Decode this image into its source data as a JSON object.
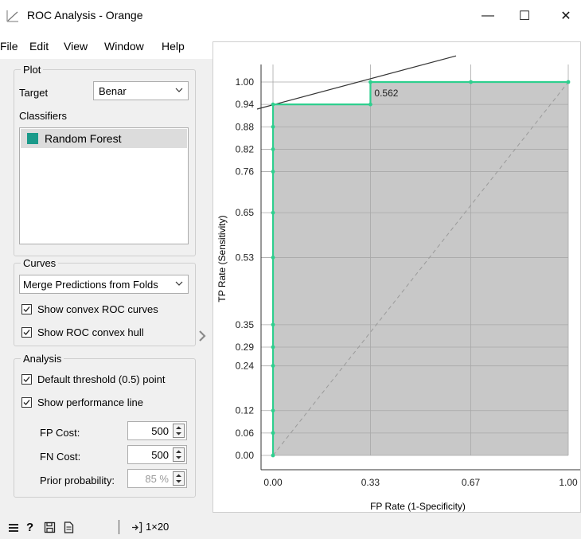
{
  "window": {
    "title": "ROC Analysis - Orange",
    "min_label": "—",
    "max_label": "☐",
    "close_label": "✕"
  },
  "menu": [
    "File",
    "Edit",
    "View",
    "Window",
    "Help"
  ],
  "plot_box": {
    "legend": "Plot",
    "target_label": "Target",
    "target_value": "Benar",
    "classifiers_label": "Classifiers",
    "classifiers": [
      {
        "name": "Random Forest",
        "color": "#1a9a8a"
      }
    ]
  },
  "curves_box": {
    "legend": "Curves",
    "mode": "Merge Predictions from Folds",
    "show_convex_roc": {
      "label": "Show convex ROC curves",
      "checked": true
    },
    "show_hull": {
      "label": "Show ROC convex hull",
      "checked": true
    }
  },
  "analysis_box": {
    "legend": "Analysis",
    "default_threshold": {
      "label": "Default threshold (0.5) point",
      "checked": true
    },
    "show_perf_line": {
      "label": "Show performance line",
      "checked": true
    },
    "fp_cost_label": "FP Cost:",
    "fp_cost": "500",
    "fn_cost_label": "FN Cost:",
    "fn_cost": "500",
    "prior_label": "Prior probability:",
    "prior": "85 %"
  },
  "status": {
    "output_count": "1×20"
  },
  "chart_data": {
    "type": "line",
    "xlabel": "FP Rate (1-Specificity)",
    "ylabel": "TP Rate (Sensitivity)",
    "xlim": [
      0,
      1
    ],
    "ylim": [
      0,
      1
    ],
    "x_ticks": [
      "0.00",
      "0.33",
      "0.67",
      "1.00"
    ],
    "y_ticks": [
      "0.00",
      "0.06",
      "0.12",
      "0.24",
      "0.29",
      "0.35",
      "0.53",
      "0.65",
      "0.76",
      "0.82",
      "0.88",
      "0.94",
      "1.00"
    ],
    "grid": true,
    "series": [
      {
        "name": "Random Forest",
        "color": "#2ecf8e",
        "x": [
          0,
          0,
          0,
          0,
          0,
          0,
          0,
          0,
          0,
          0,
          0,
          0,
          0.33,
          0.33,
          0.67,
          1.0
        ],
        "y": [
          0,
          0.06,
          0.12,
          0.24,
          0.29,
          0.35,
          0.53,
          0.65,
          0.76,
          0.82,
          0.88,
          0.94,
          0.94,
          1.0,
          1.0,
          1.0
        ]
      }
    ],
    "diagonal": {
      "x": [
        0,
        1
      ],
      "y": [
        0,
        1
      ]
    },
    "performance_line": {
      "x": [
        0,
        0.62
      ],
      "y": [
        0.936,
        1.07
      ]
    },
    "threshold_point": {
      "x": 0.33,
      "y": 1.0,
      "label": "0.562"
    }
  }
}
